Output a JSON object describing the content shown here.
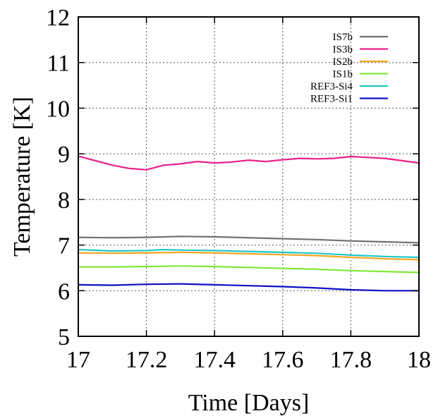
{
  "chart_data": {
    "type": "line",
    "title": "",
    "xlabel": "Time [Days]",
    "ylabel": "Temperature [K]",
    "xlim": [
      17,
      18
    ],
    "ylim": [
      5,
      12
    ],
    "xticks": [
      "17",
      "17.2",
      "17.4",
      "17.6",
      "17.8",
      "18"
    ],
    "yticks": [
      "5",
      "6",
      "7",
      "8",
      "9",
      "10",
      "11",
      "12"
    ],
    "grid": true,
    "legend_position": "top-right",
    "series": [
      {
        "name": "IS7b",
        "color": "#707070",
        "x": [
          17.0,
          17.1,
          17.2,
          17.3,
          17.4,
          17.5,
          17.6,
          17.7,
          17.8,
          17.9,
          18.0
        ],
        "y": [
          7.17,
          7.16,
          7.17,
          7.19,
          7.18,
          7.16,
          7.14,
          7.12,
          7.09,
          7.07,
          7.05
        ]
      },
      {
        "name": "IS3b",
        "color": "#e8208a",
        "x": [
          17.0,
          17.05,
          17.1,
          17.15,
          17.2,
          17.25,
          17.3,
          17.35,
          17.4,
          17.45,
          17.5,
          17.55,
          17.6,
          17.65,
          17.7,
          17.75,
          17.8,
          17.85,
          17.9,
          17.95,
          18.0
        ],
        "y": [
          8.95,
          8.85,
          8.75,
          8.68,
          8.65,
          8.75,
          8.78,
          8.83,
          8.8,
          8.82,
          8.86,
          8.83,
          8.87,
          8.9,
          8.89,
          8.9,
          8.94,
          8.92,
          8.9,
          8.85,
          8.8
        ]
      },
      {
        "name": "IS2b",
        "color": "#f5a623",
        "x": [
          17.0,
          17.1,
          17.2,
          17.3,
          17.4,
          17.5,
          17.6,
          17.7,
          17.8,
          17.9,
          18.0
        ],
        "y": [
          6.83,
          6.82,
          6.83,
          6.84,
          6.83,
          6.81,
          6.79,
          6.77,
          6.73,
          6.7,
          6.68
        ]
      },
      {
        "name": "IS1b",
        "color": "#7ee83a",
        "x": [
          17.0,
          17.1,
          17.2,
          17.3,
          17.4,
          17.5,
          17.6,
          17.7,
          17.8,
          17.9,
          18.0
        ],
        "y": [
          6.52,
          6.52,
          6.53,
          6.54,
          6.53,
          6.51,
          6.49,
          6.47,
          6.44,
          6.42,
          6.4
        ]
      },
      {
        "name": "REF3-Si4",
        "color": "#20c8c8",
        "x": [
          17.0,
          17.1,
          17.2,
          17.25,
          17.3,
          17.4,
          17.5,
          17.6,
          17.7,
          17.8,
          17.9,
          18.0
        ],
        "y": [
          6.9,
          6.87,
          6.88,
          6.9,
          6.89,
          6.88,
          6.86,
          6.84,
          6.82,
          6.78,
          6.75,
          6.73
        ]
      },
      {
        "name": "REF3-Si1",
        "color": "#1010c8",
        "x": [
          17.0,
          17.1,
          17.2,
          17.3,
          17.4,
          17.5,
          17.6,
          17.7,
          17.8,
          17.9,
          18.0
        ],
        "y": [
          6.13,
          6.12,
          6.14,
          6.15,
          6.13,
          6.11,
          6.09,
          6.06,
          6.02,
          6.0,
          6.0
        ]
      }
    ]
  }
}
